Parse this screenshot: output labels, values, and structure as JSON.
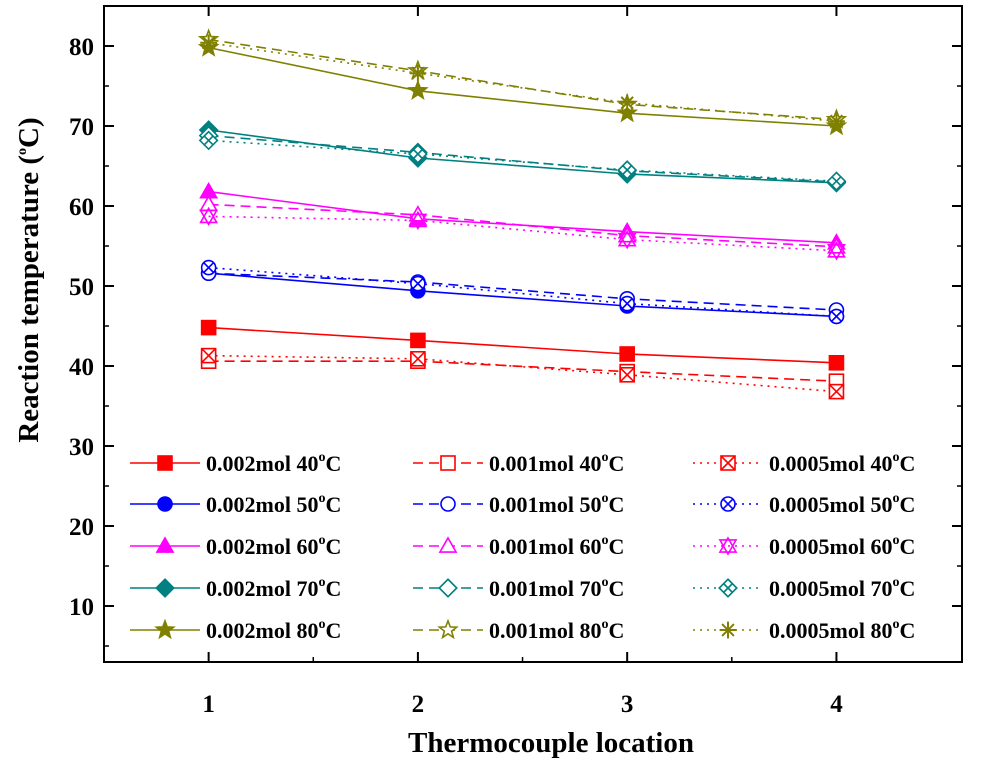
{
  "chart_data": {
    "type": "line",
    "xlabel": "Thermocouple location",
    "ylabel": "Reaction temperature (",
    "ylabel_unit_sup": "o",
    "ylabel_unit_tail": "C)",
    "x": [
      1,
      2,
      3,
      4
    ],
    "x_ticks": [
      "1",
      "2",
      "3",
      "4"
    ],
    "xlim": [
      0.5,
      4.6
    ],
    "ylim": [
      3,
      85
    ],
    "y_ticks": [
      10,
      20,
      30,
      40,
      50,
      60,
      70,
      80
    ],
    "y_tick_labels": [
      "10",
      "20",
      "30",
      "40",
      "50",
      "60",
      "70",
      "80"
    ],
    "grid": false,
    "legend_position": "bottom",
    "series": [
      {
        "name": "0.002mol 40",
        "sup": "o",
        "unit": "C",
        "color": "#ff0000",
        "dash": "solid",
        "marker": "square-filled",
        "values": [
          44.8,
          43.2,
          41.5,
          40.4
        ]
      },
      {
        "name": "0.001mol 40",
        "sup": "o",
        "unit": "C",
        "color": "#ff0000",
        "dash": "dashed",
        "marker": "square-open",
        "values": [
          40.6,
          40.6,
          39.3,
          38.1
        ]
      },
      {
        "name": "0.0005mol 40",
        "sup": "o",
        "unit": "C",
        "color": "#ff0000",
        "dash": "dotted",
        "marker": "square-x",
        "values": [
          41.3,
          40.9,
          38.9,
          36.8
        ]
      },
      {
        "name": "0.002mol 50",
        "sup": "o",
        "unit": "C",
        "color": "#0000ff",
        "dash": "solid",
        "marker": "circle-filled",
        "values": [
          51.6,
          49.4,
          47.5,
          46.2
        ]
      },
      {
        "name": "0.001mol 50",
        "sup": "o",
        "unit": "C",
        "color": "#0000ff",
        "dash": "dashed",
        "marker": "circle-open",
        "values": [
          51.6,
          50.5,
          48.4,
          47.0
        ]
      },
      {
        "name": "0.0005mol 50",
        "sup": "o",
        "unit": "C",
        "color": "#0000ff",
        "dash": "dotted",
        "marker": "circle-x",
        "values": [
          52.3,
          50.3,
          47.8,
          46.2
        ]
      },
      {
        "name": "0.002mol 60",
        "sup": "o",
        "unit": "C",
        "color": "#ff00ff",
        "dash": "solid",
        "marker": "triangle-filled",
        "values": [
          61.8,
          58.4,
          56.8,
          55.4
        ]
      },
      {
        "name": "0.001mol 60",
        "sup": "o",
        "unit": "C",
        "color": "#ff00ff",
        "dash": "dashed",
        "marker": "triangle-open",
        "values": [
          60.2,
          58.9,
          56.3,
          54.9
        ]
      },
      {
        "name": "0.0005mol 60",
        "sup": "o",
        "unit": "C",
        "color": "#ff00ff",
        "dash": "dotted",
        "marker": "triangle-x",
        "values": [
          58.7,
          58.2,
          55.8,
          54.4
        ]
      },
      {
        "name": "0.002mol 70",
        "sup": "o",
        "unit": "C",
        "color": "#008080",
        "dash": "solid",
        "marker": "diamond-filled",
        "values": [
          69.5,
          66.0,
          64.0,
          62.9
        ]
      },
      {
        "name": "0.001mol 70",
        "sup": "o",
        "unit": "C",
        "color": "#008080",
        "dash": "dashed",
        "marker": "diamond-open",
        "values": [
          68.8,
          66.7,
          64.4,
          63.0
        ]
      },
      {
        "name": "0.0005mol 70",
        "sup": "o",
        "unit": "C",
        "color": "#008080",
        "dash": "dotted",
        "marker": "diamond-x",
        "values": [
          68.2,
          66.5,
          64.5,
          63.1
        ]
      },
      {
        "name": "0.002mol 80",
        "sup": "o",
        "unit": "C",
        "color": "#808000",
        "dash": "solid",
        "marker": "star-filled",
        "values": [
          79.8,
          74.4,
          71.6,
          70.0
        ]
      },
      {
        "name": "0.001mol 80",
        "sup": "o",
        "unit": "C",
        "color": "#808000",
        "dash": "dashed",
        "marker": "star-open",
        "values": [
          80.8,
          76.9,
          72.7,
          70.8
        ]
      },
      {
        "name": "0.0005mol 80",
        "sup": "o",
        "unit": "C",
        "color": "#808000",
        "dash": "dotted",
        "marker": "asterisk",
        "values": [
          80.4,
          76.6,
          72.9,
          70.6
        ]
      }
    ]
  }
}
